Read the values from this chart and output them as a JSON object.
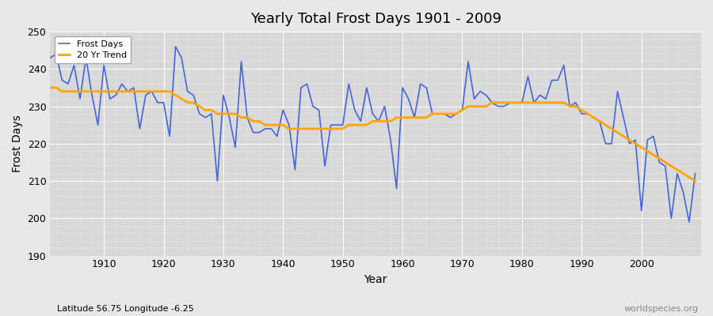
{
  "title": "Yearly Total Frost Days 1901 - 2009",
  "xlabel": "Year",
  "ylabel": "Frost Days",
  "subtitle_left": "Latitude 56.75 Longitude -6.25",
  "subtitle_right": "worldspecies.org",
  "line_color": "#4466dd",
  "trend_color": "#FFA500",
  "bg_color": "#e8e8e8",
  "plot_bg_color": "#d8d8d8",
  "ylim": [
    190,
    250
  ],
  "yticks": [
    190,
    200,
    210,
    220,
    230,
    240,
    250
  ],
  "xlim": [
    1901,
    2010
  ],
  "xticks": [
    1910,
    1920,
    1930,
    1940,
    1950,
    1960,
    1970,
    1980,
    1990,
    2000
  ],
  "years": [
    1901,
    1902,
    1903,
    1904,
    1905,
    1906,
    1907,
    1908,
    1909,
    1910,
    1911,
    1912,
    1913,
    1914,
    1915,
    1916,
    1917,
    1918,
    1919,
    1920,
    1921,
    1922,
    1923,
    1924,
    1925,
    1926,
    1927,
    1928,
    1929,
    1930,
    1931,
    1932,
    1933,
    1934,
    1935,
    1936,
    1937,
    1938,
    1939,
    1940,
    1941,
    1942,
    1943,
    1944,
    1945,
    1946,
    1947,
    1948,
    1949,
    1950,
    1951,
    1952,
    1953,
    1954,
    1955,
    1956,
    1957,
    1958,
    1959,
    1960,
    1961,
    1962,
    1963,
    1964,
    1965,
    1966,
    1967,
    1968,
    1969,
    1970,
    1971,
    1972,
    1973,
    1974,
    1975,
    1976,
    1977,
    1978,
    1979,
    1980,
    1981,
    1982,
    1983,
    1984,
    1985,
    1986,
    1987,
    1988,
    1989,
    1990,
    1991,
    1992,
    1993,
    1994,
    1995,
    1996,
    1997,
    1998,
    1999,
    2000,
    2001,
    2002,
    2003,
    2004,
    2005,
    2006,
    2007,
    2008,
    2009
  ],
  "frost_days": [
    243,
    244,
    237,
    236,
    241,
    232,
    243,
    233,
    225,
    241,
    232,
    233,
    236,
    234,
    235,
    224,
    233,
    234,
    231,
    231,
    222,
    246,
    243,
    234,
    233,
    228,
    227,
    228,
    210,
    233,
    227,
    219,
    242,
    227,
    223,
    223,
    224,
    224,
    222,
    229,
    225,
    213,
    235,
    236,
    230,
    229,
    214,
    225,
    225,
    225,
    236,
    229,
    226,
    235,
    228,
    226,
    230,
    221,
    208,
    235,
    232,
    227,
    236,
    235,
    228,
    228,
    228,
    227,
    228,
    229,
    242,
    232,
    234,
    233,
    231,
    230,
    230,
    231,
    231,
    231,
    238,
    231,
    233,
    232,
    237,
    237,
    241,
    230,
    231,
    228,
    228,
    227,
    226,
    220,
    220,
    234,
    227,
    220,
    221,
    202,
    221,
    222,
    215,
    214,
    200,
    212,
    207,
    199,
    212
  ],
  "trend_days": [
    235,
    235,
    234,
    234,
    234,
    234,
    234,
    234,
    234,
    234,
    234,
    234,
    234,
    234,
    234,
    234,
    234,
    234,
    234,
    234,
    234,
    233,
    232,
    231,
    231,
    230,
    229,
    229,
    228,
    228,
    228,
    228,
    227,
    227,
    226,
    226,
    225,
    225,
    225,
    225,
    224,
    224,
    224,
    224,
    224,
    224,
    224,
    224,
    224,
    224,
    225,
    225,
    225,
    225,
    226,
    226,
    226,
    226,
    227,
    227,
    227,
    227,
    227,
    227,
    228,
    228,
    228,
    228,
    228,
    229,
    230,
    230,
    230,
    230,
    231,
    231,
    231,
    231,
    231,
    231,
    231,
    231,
    231,
    231,
    231,
    231,
    231,
    230,
    230,
    229,
    228,
    227,
    226,
    225,
    224,
    223,
    222,
    221,
    220,
    219,
    218,
    217,
    216,
    215,
    214,
    213,
    212,
    211,
    210
  ]
}
